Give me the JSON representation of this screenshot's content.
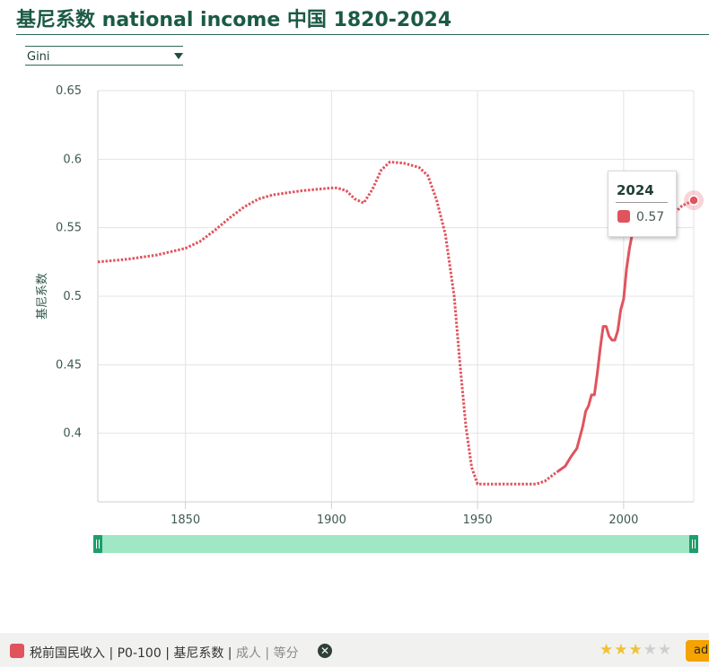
{
  "page": {
    "title": "基尼系数 national income 中国 1820-2024",
    "indicator_select": {
      "selected": "Gini"
    }
  },
  "chart_data": {
    "type": "line",
    "xlim": [
      1820,
      2024
    ],
    "ylim": [
      0.35,
      0.65
    ],
    "ylabel": "基尼系数",
    "xlabel": "",
    "x_ticks": [
      1850,
      1900,
      1950,
      2000
    ],
    "y_ticks": [
      0.4,
      0.45,
      0.5,
      0.55,
      0.6,
      0.65
    ],
    "y_tick_labels": [
      "0.4",
      "0.45",
      "0.5",
      "0.55",
      "0.6",
      "0.65"
    ],
    "grid": true,
    "series": [
      {
        "color": "#e0545e",
        "style": "dotted",
        "points": [
          [
            1820,
            0.525
          ],
          [
            1830,
            0.527
          ],
          [
            1840,
            0.53
          ],
          [
            1850,
            0.535
          ],
          [
            1855,
            0.54
          ],
          [
            1860,
            0.548
          ],
          [
            1865,
            0.557
          ],
          [
            1870,
            0.565
          ],
          [
            1875,
            0.571
          ],
          [
            1880,
            0.574
          ],
          [
            1890,
            0.577
          ],
          [
            1900,
            0.579
          ],
          [
            1902,
            0.579
          ],
          [
            1905,
            0.577
          ],
          [
            1908,
            0.571
          ],
          [
            1911,
            0.568
          ],
          [
            1914,
            0.578
          ],
          [
            1917,
            0.592
          ],
          [
            1920,
            0.598
          ],
          [
            1925,
            0.597
          ],
          [
            1930,
            0.594
          ],
          [
            1933,
            0.588
          ],
          [
            1936,
            0.57
          ],
          [
            1939,
            0.545
          ],
          [
            1942,
            0.5
          ],
          [
            1944,
            0.45
          ],
          [
            1946,
            0.405
          ],
          [
            1948,
            0.375
          ],
          [
            1950,
            0.363
          ],
          [
            1960,
            0.363
          ],
          [
            1970,
            0.363
          ],
          [
            1973,
            0.365
          ],
          [
            1976,
            0.37
          ],
          [
            1978,
            0.373
          ]
        ]
      },
      {
        "color": "#e0545e",
        "style": "solid",
        "points": [
          [
            1978,
            0.373
          ],
          [
            1980,
            0.376
          ],
          [
            1982,
            0.383
          ],
          [
            1984,
            0.389
          ],
          [
            1986,
            0.405
          ],
          [
            1987,
            0.416
          ],
          [
            1988,
            0.42
          ],
          [
            1989,
            0.428
          ],
          [
            1990,
            0.428
          ],
          [
            1991,
            0.444
          ],
          [
            1992,
            0.462
          ],
          [
            1993,
            0.478
          ],
          [
            1994,
            0.478
          ],
          [
            1995,
            0.471
          ],
          [
            1996,
            0.468
          ],
          [
            1997,
            0.468
          ],
          [
            1998,
            0.475
          ],
          [
            1999,
            0.49
          ],
          [
            2000,
            0.498
          ],
          [
            2001,
            0.52
          ],
          [
            2002,
            0.535
          ],
          [
            2003,
            0.546
          ],
          [
            2004,
            0.554
          ],
          [
            2005,
            0.558
          ],
          [
            2006,
            0.562
          ],
          [
            2007,
            0.565
          ],
          [
            2008,
            0.567
          ]
        ]
      },
      {
        "color": "#e0545e",
        "style": "dotted",
        "points": [
          [
            2008,
            0.567
          ],
          [
            2010,
            0.57
          ],
          [
            2012,
            0.566
          ],
          [
            2014,
            0.568
          ],
          [
            2016,
            0.56
          ],
          [
            2018,
            0.562
          ],
          [
            2020,
            0.566
          ],
          [
            2022,
            0.568
          ],
          [
            2024,
            0.57
          ]
        ]
      }
    ],
    "highlight": {
      "x": 2024,
      "y": 0.57
    },
    "tooltip": {
      "year": "2024",
      "value": "0.57"
    },
    "range_slider": {
      "from": 1820,
      "to": 2024
    }
  },
  "legend_bar": {
    "swatch_color": "#e0545e",
    "label_main": "税前国民收入 | P0-100 | 基尼系数 |",
    "label_muted": " 成人 | 等分",
    "remove_icon": "close-circle-icon",
    "rating": {
      "filled": 3,
      "total": 5
    },
    "ad_button_label": "ad"
  }
}
